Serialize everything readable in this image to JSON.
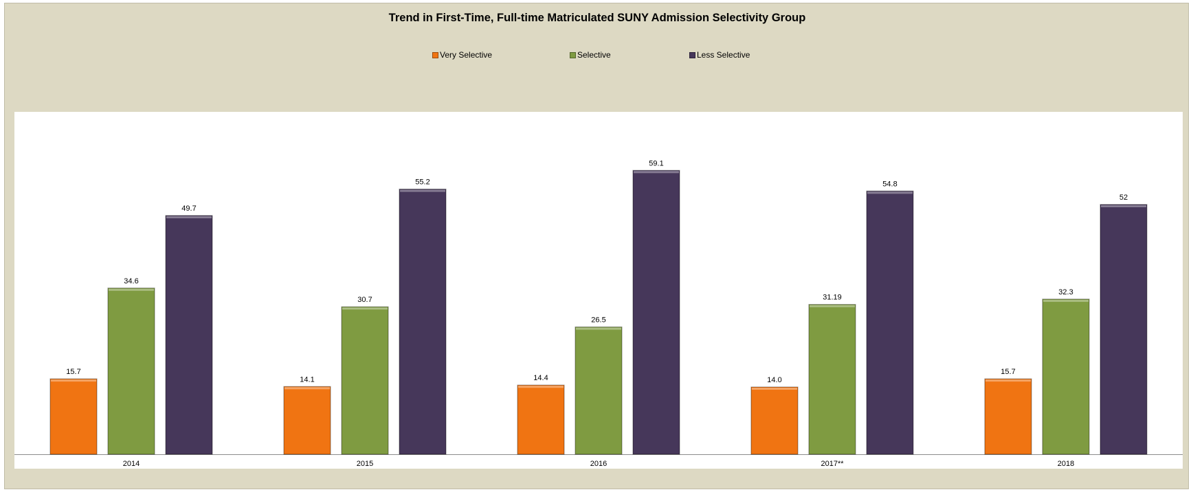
{
  "chart_data": {
    "type": "bar",
    "title": "Trend in First-Time, Full-time Matriculated SUNY Admission Selectivity Group",
    "categories": [
      "2014",
      "2015",
      "2016",
      "2017**",
      "2018"
    ],
    "series": [
      {
        "name": "Very Selective",
        "color": "#f07412",
        "values": [
          15.7,
          14.1,
          14.4,
          14.0,
          15.7
        ],
        "labels": [
          "15.7",
          "14.1",
          "14.4",
          "14.0",
          "15.7"
        ]
      },
      {
        "name": "Selective",
        "color": "#7f9b41",
        "values": [
          34.6,
          30.7,
          26.5,
          31.19,
          32.3
        ],
        "labels": [
          "34.6",
          "30.7",
          "26.5",
          "31.19",
          "32.3"
        ]
      },
      {
        "name": "Less Selective",
        "color": "#46375a",
        "values": [
          49.7,
          55.2,
          59.1,
          54.8,
          52
        ],
        "labels": [
          "49.7",
          "55.2",
          "59.1",
          "54.8",
          "52"
        ]
      }
    ],
    "ylim": [
      0,
      70
    ],
    "grid": false,
    "legend_position": "top"
  }
}
